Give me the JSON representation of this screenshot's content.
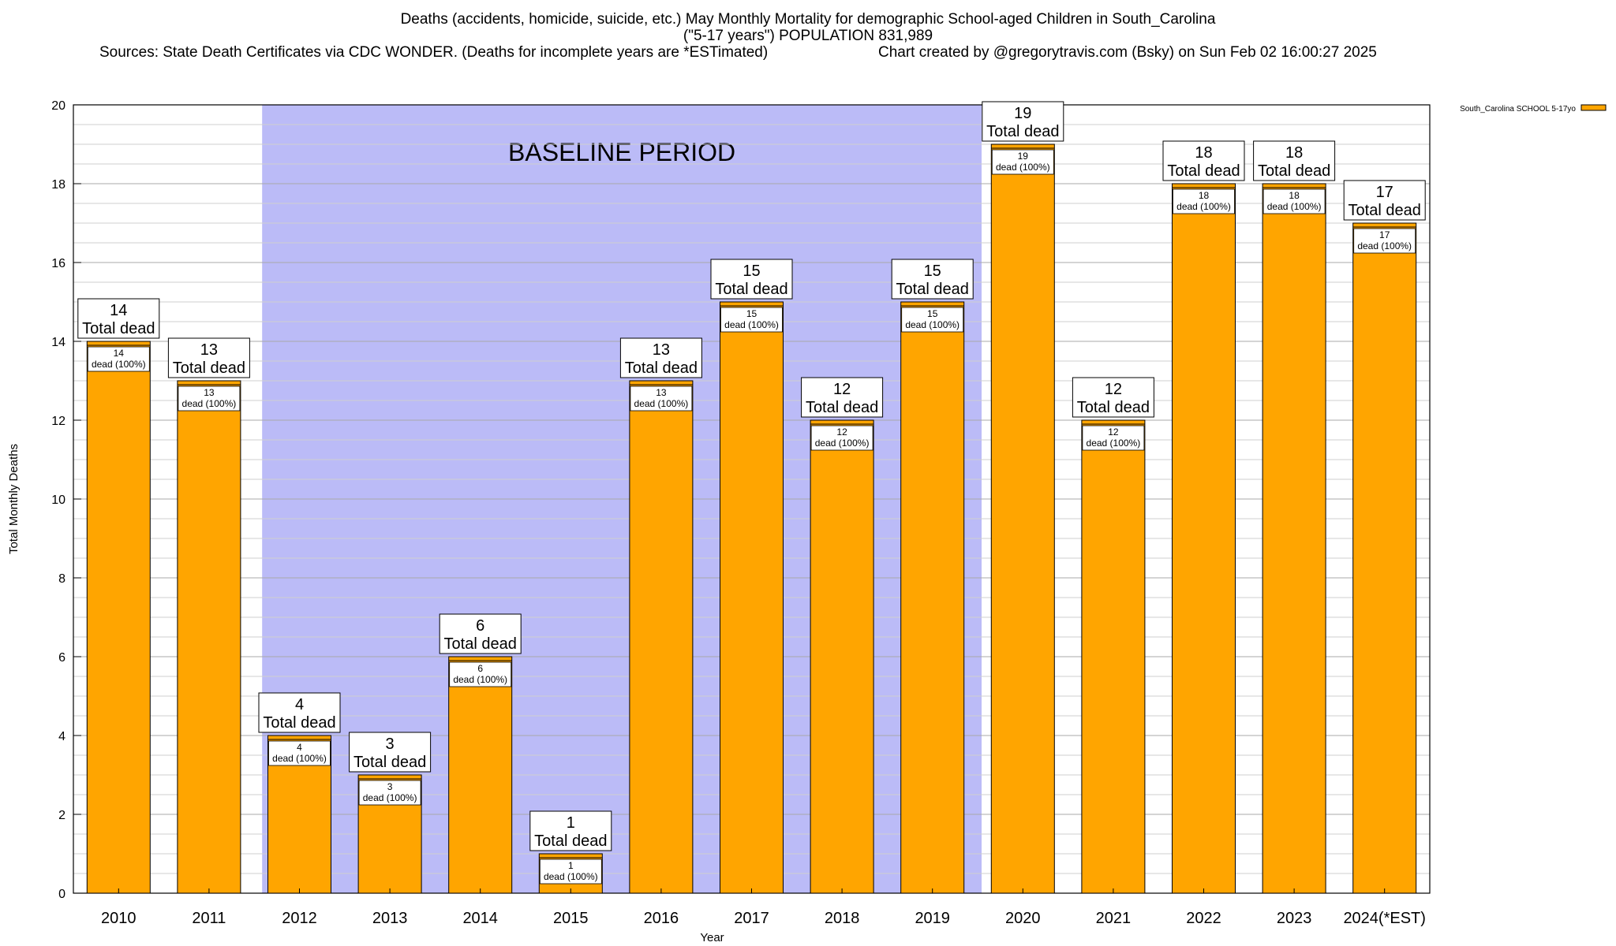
{
  "header": {
    "title_line1": "Deaths (accidents, homicide, suicide, etc.) May Monthly Mortality for demographic School-aged Children in South_Carolina",
    "title_line2": "(\"5-17 years\") POPULATION 831,989",
    "sources": "Sources: State Death Certificates via CDC WONDER. (Deaths for incomplete years are *ESTimated)",
    "credit": "Chart created by @gregorytravis.com (Bsky) on Sun Feb 02 16:00:27 2025"
  },
  "chart_data": {
    "type": "bar",
    "title": "Deaths (accidents, homicide, suicide, etc.) May Monthly Mortality for demographic School-aged Children in South_Carolina",
    "xlabel": "Year",
    "ylabel": "Total Monthly Deaths",
    "ylim": [
      0,
      20
    ],
    "yticks": [
      0,
      2,
      4,
      6,
      8,
      10,
      12,
      14,
      16,
      18,
      20
    ],
    "grid": true,
    "legend_position": "top-right",
    "categories": [
      "2010",
      "2011",
      "2012",
      "2013",
      "2014",
      "2015",
      "2016",
      "2017",
      "2018",
      "2019",
      "2020",
      "2021",
      "2022",
      "2023",
      "2024(*EST)"
    ],
    "series": [
      {
        "name": "South_Carolina SCHOOL 5-17yo",
        "color": "#ffa500",
        "values": [
          14,
          13,
          4,
          3,
          6,
          1,
          13,
          15,
          12,
          15,
          19,
          12,
          18,
          18,
          17
        ]
      }
    ],
    "total_label_suffix": "Total dead",
    "inner_label_suffix": "dead (100%)",
    "baseline": {
      "label": "BASELINE PERIOD",
      "from_category": "2012",
      "to_category": "2019",
      "color": "#bbbbf7"
    }
  }
}
